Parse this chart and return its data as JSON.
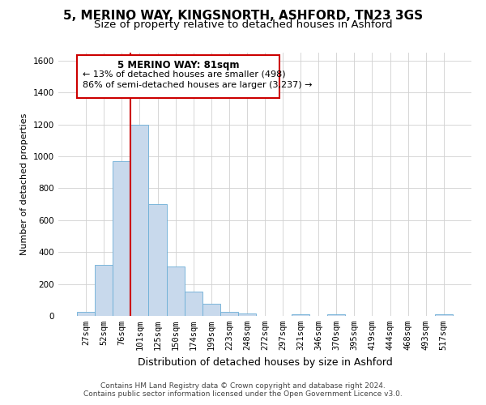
{
  "title": "5, MERINO WAY, KINGSNORTH, ASHFORD, TN23 3GS",
  "subtitle": "Size of property relative to detached houses in Ashford",
  "xlabel": "Distribution of detached houses by size in Ashford",
  "ylabel": "Number of detached properties",
  "bar_labels": [
    "27sqm",
    "52sqm",
    "76sqm",
    "101sqm",
    "125sqm",
    "150sqm",
    "174sqm",
    "199sqm",
    "223sqm",
    "248sqm",
    "272sqm",
    "297sqm",
    "321sqm",
    "346sqm",
    "370sqm",
    "395sqm",
    "419sqm",
    "444sqm",
    "468sqm",
    "493sqm",
    "517sqm"
  ],
  "bar_values": [
    25,
    320,
    970,
    1200,
    700,
    310,
    150,
    75,
    25,
    15,
    0,
    0,
    10,
    0,
    10,
    0,
    0,
    0,
    0,
    0,
    10
  ],
  "bar_color": "#c8d9ec",
  "bar_edge_color": "#6baed6",
  "vline_color": "#cc0000",
  "ylim": [
    0,
    1650
  ],
  "yticks": [
    0,
    200,
    400,
    600,
    800,
    1000,
    1200,
    1400,
    1600
  ],
  "annotation_title": "5 MERINO WAY: 81sqm",
  "annotation_line1": "← 13% of detached houses are smaller (498)",
  "annotation_line2": "86% of semi-detached houses are larger (3,237) →",
  "annotation_box_color": "#ffffff",
  "annotation_box_edge": "#cc0000",
  "footer_line1": "Contains HM Land Registry data © Crown copyright and database right 2024.",
  "footer_line2": "Contains public sector information licensed under the Open Government Licence v3.0.",
  "bg_color": "#ffffff",
  "grid_color": "#d0d0d0",
  "title_fontsize": 11,
  "subtitle_fontsize": 9.5,
  "xlabel_fontsize": 9,
  "ylabel_fontsize": 8,
  "tick_fontsize": 7.5,
  "footer_fontsize": 6.5,
  "ann_title_fontsize": 8.5,
  "ann_text_fontsize": 8
}
